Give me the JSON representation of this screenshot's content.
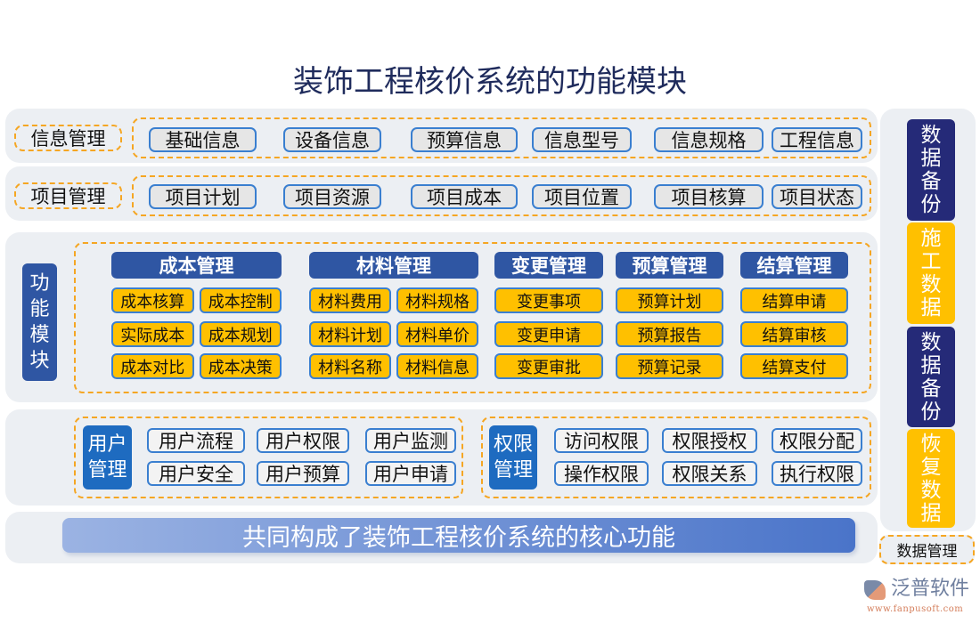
{
  "title": "装饰工程核价系统的功能模块",
  "info": {
    "label": "信息管理",
    "items": [
      "基础信息",
      "设备信息",
      "预算信息",
      "信息型号",
      "信息规格",
      "工程信息"
    ]
  },
  "project": {
    "label": "项目管理",
    "items": [
      "项目计划",
      "项目资源",
      "项目成本",
      "项目位置",
      "项目核算",
      "项目状态"
    ]
  },
  "func": {
    "label": "功能模块",
    "groups": [
      {
        "title": "成本管理",
        "items": [
          "成本核算",
          "成本控制",
          "实际成本",
          "成本规划",
          "成本对比",
          "成本决策"
        ]
      },
      {
        "title": "材料管理",
        "items": [
          "材料费用",
          "材料规格",
          "材料计划",
          "材料单价",
          "材料名称",
          "材料信息"
        ]
      },
      {
        "title": "变更管理",
        "items": [
          "变更事项",
          "变更申请",
          "变更审批"
        ]
      },
      {
        "title": "预算管理",
        "items": [
          "预算计划",
          "预算报告",
          "预算记录"
        ]
      },
      {
        "title": "结算管理",
        "items": [
          "结算申请",
          "结算审核",
          "结算支付"
        ]
      }
    ]
  },
  "user": {
    "label": "用户管理",
    "items": [
      "用户流程",
      "用户权限",
      "用户监测",
      "用户安全",
      "用户预算",
      "用户申请"
    ]
  },
  "perm": {
    "label": "权限管理",
    "items": [
      "访问权限",
      "权限授权",
      "权限分配",
      "操作权限",
      "权限关系",
      "执行权限"
    ]
  },
  "footer": "共同构成了装饰工程核价系统的核心功能",
  "data_mgmt": {
    "label": "数据管理",
    "blocks": [
      {
        "text": "数据备份",
        "color": "#252a78"
      },
      {
        "text": "施工数据",
        "color": "#ffc000"
      },
      {
        "text": "数据备份",
        "color": "#252a78"
      },
      {
        "text": "恢复数据",
        "color": "#ffc000"
      }
    ]
  },
  "logo": {
    "name": "泛普软件",
    "url": "www.fanpusoft.com"
  }
}
